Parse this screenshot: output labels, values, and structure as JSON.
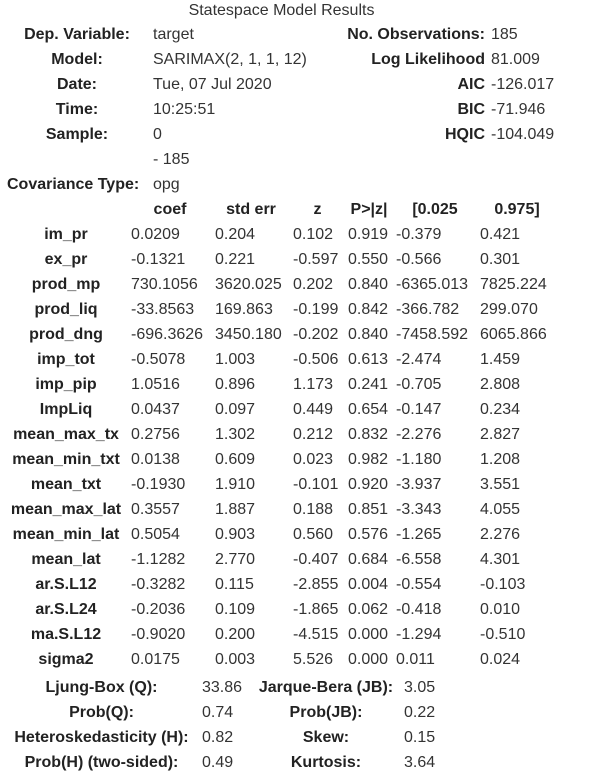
{
  "title": "Statespace Model Results",
  "info_rows": [
    {
      "l_label": "Dep. Variable:",
      "l_value": "target",
      "r_label": "No. Observations:",
      "r_value": "185"
    },
    {
      "l_label": "Model:",
      "l_value": "SARIMAX(2, 1, 1, 12)",
      "r_label": "Log Likelihood",
      "r_value": "81.009"
    },
    {
      "l_label": "Date:",
      "l_value": "Tue, 07 Jul 2020",
      "r_label": "AIC",
      "r_value": "-126.017"
    },
    {
      "l_label": "Time:",
      "l_value": "10:25:51",
      "r_label": "BIC",
      "r_value": "-71.946"
    },
    {
      "l_label": "Sample:",
      "l_value": "0",
      "r_label": "HQIC",
      "r_value": "-104.049"
    },
    {
      "l_label": "",
      "l_value": "- 185",
      "r_label": "",
      "r_value": ""
    },
    {
      "l_label": "Covariance Type:",
      "l_value": "opg",
      "r_label": "",
      "r_value": ""
    }
  ],
  "coef_header": [
    "",
    "coef",
    "std err",
    "z",
    "P>|z|",
    "[0.025",
    "0.975]"
  ],
  "coef_rows": [
    [
      "im_pr",
      "0.0209",
      "0.204",
      "0.102",
      "0.919",
      "-0.379",
      "0.421"
    ],
    [
      "ex_pr",
      "-0.1321",
      "0.221",
      "-0.597",
      "0.550",
      "-0.566",
      "0.301"
    ],
    [
      "prod_mp",
      "730.1056",
      "3620.025",
      "0.202",
      "0.840",
      "-6365.013",
      "7825.224"
    ],
    [
      "prod_liq",
      "-33.8563",
      "169.863",
      "-0.199",
      "0.842",
      "-366.782",
      "299.070"
    ],
    [
      "prod_dng",
      "-696.3626",
      "3450.180",
      "-0.202",
      "0.840",
      "-7458.592",
      "6065.866"
    ],
    [
      "imp_tot",
      "-0.5078",
      "1.003",
      "-0.506",
      "0.613",
      "-2.474",
      "1.459"
    ],
    [
      "imp_pip",
      "1.0516",
      "0.896",
      "1.173",
      "0.241",
      "-0.705",
      "2.808"
    ],
    [
      "ImpLiq",
      "0.0437",
      "0.097",
      "0.449",
      "0.654",
      "-0.147",
      "0.234"
    ],
    [
      "mean_max_tx",
      "0.2756",
      "1.302",
      "0.212",
      "0.832",
      "-2.276",
      "2.827"
    ],
    [
      "mean_min_txt",
      "0.0138",
      "0.609",
      "0.023",
      "0.982",
      "-1.180",
      "1.208"
    ],
    [
      "mean_txt",
      "-0.1930",
      "1.910",
      "-0.101",
      "0.920",
      "-3.937",
      "3.551"
    ],
    [
      "mean_max_lat",
      "0.3557",
      "1.887",
      "0.188",
      "0.851",
      "-3.343",
      "4.055"
    ],
    [
      "mean_min_lat",
      "0.5054",
      "0.903",
      "0.560",
      "0.576",
      "-1.265",
      "2.276"
    ],
    [
      "mean_lat",
      "-1.1282",
      "2.770",
      "-0.407",
      "0.684",
      "-6.558",
      "4.301"
    ],
    [
      "ar.S.L12",
      "-0.3282",
      "0.115",
      "-2.855",
      "0.004",
      "-0.554",
      "-0.103"
    ],
    [
      "ar.S.L24",
      "-0.2036",
      "0.109",
      "-1.865",
      "0.062",
      "-0.418",
      "0.010"
    ],
    [
      "ma.S.L12",
      "-0.9020",
      "0.200",
      "-4.515",
      "0.000",
      "-1.294",
      "-0.510"
    ],
    [
      "sigma2",
      "0.0175",
      "0.003",
      "5.526",
      "0.000",
      "0.011",
      "0.024"
    ]
  ],
  "diag_rows": [
    [
      "Ljung-Box (Q):",
      "33.86",
      "Jarque-Bera (JB):",
      "3.05"
    ],
    [
      "Prob(Q):",
      "0.74",
      "Prob(JB):",
      "0.22"
    ],
    [
      "Heteroskedasticity (H):",
      "0.82",
      "Skew:",
      "0.15"
    ],
    [
      "Prob(H) (two-sided):",
      "0.49",
      "Kurtosis:",
      "3.64"
    ]
  ]
}
